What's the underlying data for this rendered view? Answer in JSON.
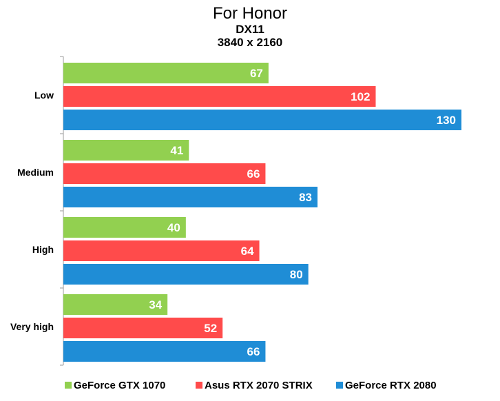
{
  "chart_data": {
    "type": "bar",
    "orientation": "horizontal",
    "title": "For Honor",
    "subtitle": [
      "DX11",
      "3840 x 2160"
    ],
    "categories": [
      "Low",
      "Medium",
      "High",
      "Very high"
    ],
    "series": [
      {
        "name": "GeForce GTX 1070",
        "color": "#92d050",
        "values": [
          67,
          41,
          40,
          34
        ]
      },
      {
        "name": "Asus RTX 2070 STRIX",
        "color": "#ff4b4b",
        "values": [
          102,
          66,
          64,
          52
        ]
      },
      {
        "name": "GeForce RTX 2080",
        "color": "#1f8dd6",
        "values": [
          130,
          83,
          80,
          66
        ]
      }
    ],
    "xlim": [
      0,
      140
    ],
    "grid": false,
    "legend_position": "bottom"
  }
}
